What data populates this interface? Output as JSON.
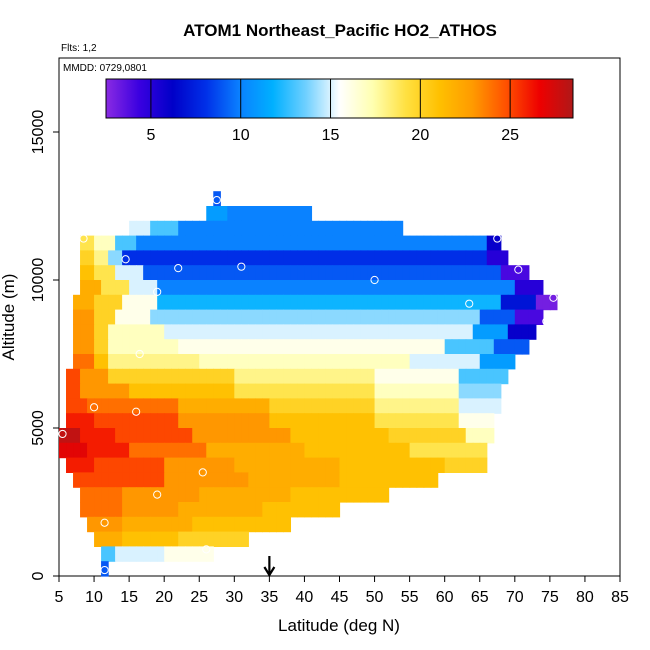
{
  "chart_data": {
    "type": "heatmap",
    "title": "ATOM1 Northeast_Pacific HO2_ATHOS",
    "subtitle_flights": "Flts: 1,2",
    "subtitle_dates": "MMDD: 0729,0801",
    "xlabel": "Latitude (deg N)",
    "ylabel": "Altitude (m)",
    "xlim": [
      5,
      85
    ],
    "ylim": [
      0,
      17500
    ],
    "xticks": [
      5,
      10,
      15,
      20,
      25,
      30,
      35,
      40,
      45,
      50,
      55,
      60,
      65,
      70,
      75,
      80,
      85
    ],
    "yticks": [
      0,
      5000,
      10000,
      15000
    ],
    "colorbar": {
      "range": [
        2.5,
        28.5
      ],
      "ticks": [
        5,
        10,
        15,
        20,
        25
      ],
      "colors": [
        "#8a2be2",
        "#3a00e0",
        "#0000c8",
        "#0030e8",
        "#0a80ff",
        "#00b0ff",
        "#70d0ff",
        "#ffffff",
        "#ffffb0",
        "#ffe040",
        "#ffc000",
        "#ff9a00",
        "#ff5000",
        "#ee0000",
        "#b01818"
      ]
    },
    "arrow_marker_lat": 35,
    "rows": [
      {
        "alt": [
          12500,
          13000
        ],
        "x1": 27,
        "x2": 28,
        "values": [
          [
            27,
            28,
            9
          ]
        ]
      },
      {
        "alt": [
          12000,
          12500
        ],
        "x1": 26,
        "x2": 41,
        "values": [
          [
            26,
            29,
            11
          ],
          [
            29,
            41,
            10
          ]
        ]
      },
      {
        "alt": [
          11500,
          12000
        ],
        "x1": 15,
        "x2": 54,
        "values": [
          [
            15,
            18,
            15
          ],
          [
            18,
            22,
            13
          ],
          [
            22,
            54,
            10
          ]
        ]
      },
      {
        "alt": [
          11000,
          11500
        ],
        "x1": 8,
        "x2": 68,
        "values": [
          [
            8,
            10,
            19
          ],
          [
            10,
            13,
            17
          ],
          [
            13,
            16,
            13
          ],
          [
            16,
            66,
            10
          ],
          [
            66,
            68,
            6
          ]
        ]
      },
      {
        "alt": [
          10500,
          11000
        ],
        "x1": 8,
        "x2": 69,
        "values": [
          [
            8,
            10,
            20
          ],
          [
            10,
            12,
            18
          ],
          [
            12,
            14,
            14
          ],
          [
            14,
            66,
            8
          ],
          [
            66,
            69,
            5
          ]
        ]
      },
      {
        "alt": [
          10000,
          10500
        ],
        "x1": 8,
        "x2": 72,
        "values": [
          [
            8,
            10,
            21
          ],
          [
            10,
            13,
            19
          ],
          [
            13,
            17,
            15
          ],
          [
            17,
            68,
            9
          ],
          [
            68,
            72,
            4
          ]
        ]
      },
      {
        "alt": [
          9500,
          10000
        ],
        "x1": 8,
        "x2": 74,
        "values": [
          [
            8,
            11,
            22
          ],
          [
            11,
            15,
            19
          ],
          [
            15,
            19,
            15
          ],
          [
            19,
            70,
            10
          ],
          [
            70,
            74,
            5
          ]
        ]
      },
      {
        "alt": [
          9000,
          9500
        ],
        "x1": 7,
        "x2": 76,
        "values": [
          [
            7,
            10,
            22
          ],
          [
            10,
            14,
            20
          ],
          [
            14,
            19,
            16
          ],
          [
            19,
            68,
            12
          ],
          [
            68,
            73,
            7
          ],
          [
            73,
            76,
            3
          ]
        ]
      },
      {
        "alt": [
          8500,
          9000
        ],
        "x1": 7,
        "x2": 74,
        "values": [
          [
            7,
            10,
            23
          ],
          [
            10,
            13,
            20
          ],
          [
            13,
            18,
            16
          ],
          [
            18,
            65,
            14
          ],
          [
            65,
            70,
            9
          ],
          [
            70,
            74,
            4
          ]
        ]
      },
      {
        "alt": [
          8000,
          8500
        ],
        "x1": 7,
        "x2": 73,
        "values": [
          [
            7,
            10,
            23
          ],
          [
            10,
            12,
            20
          ],
          [
            12,
            20,
            17
          ],
          [
            20,
            64,
            15
          ],
          [
            64,
            69,
            11
          ],
          [
            69,
            73,
            6
          ]
        ]
      },
      {
        "alt": [
          7500,
          8000
        ],
        "x1": 7,
        "x2": 72,
        "values": [
          [
            7,
            10,
            23
          ],
          [
            10,
            12,
            20
          ],
          [
            12,
            22,
            17
          ],
          [
            22,
            60,
            16
          ],
          [
            60,
            67,
            13
          ],
          [
            67,
            72,
            9
          ]
        ]
      },
      {
        "alt": [
          7000,
          7500
        ],
        "x1": 7,
        "x2": 70,
        "values": [
          [
            7,
            10,
            24
          ],
          [
            10,
            12,
            21
          ],
          [
            12,
            25,
            18
          ],
          [
            25,
            55,
            17
          ],
          [
            55,
            65,
            15
          ],
          [
            65,
            70,
            11
          ]
        ]
      },
      {
        "alt": [
          6500,
          7000
        ],
        "x1": 6,
        "x2": 69,
        "values": [
          [
            6,
            8,
            25
          ],
          [
            8,
            12,
            23
          ],
          [
            12,
            30,
            20
          ],
          [
            30,
            50,
            18
          ],
          [
            50,
            62,
            16
          ],
          [
            62,
            69,
            13
          ]
        ]
      },
      {
        "alt": [
          6000,
          6500
        ],
        "x1": 6,
        "x2": 68,
        "values": [
          [
            6,
            8,
            25
          ],
          [
            8,
            15,
            23
          ],
          [
            15,
            30,
            21
          ],
          [
            30,
            50,
            19
          ],
          [
            50,
            62,
            17
          ],
          [
            62,
            68,
            14
          ]
        ]
      },
      {
        "alt": [
          5500,
          6000
        ],
        "x1": 6,
        "x2": 68,
        "values": [
          [
            6,
            9,
            25
          ],
          [
            9,
            22,
            24
          ],
          [
            22,
            35,
            22
          ],
          [
            35,
            50,
            20
          ],
          [
            50,
            62,
            18
          ],
          [
            62,
            68,
            15
          ]
        ]
      },
      {
        "alt": [
          5000,
          5500
        ],
        "x1": 6,
        "x2": 67,
        "values": [
          [
            6,
            10,
            26
          ],
          [
            10,
            22,
            25
          ],
          [
            22,
            35,
            23
          ],
          [
            35,
            50,
            21
          ],
          [
            50,
            62,
            19
          ],
          [
            62,
            67,
            16
          ]
        ]
      },
      {
        "alt": [
          4500,
          5000
        ],
        "x1": 5,
        "x2": 67,
        "values": [
          [
            5,
            8,
            28
          ],
          [
            8,
            13,
            26
          ],
          [
            13,
            24,
            25
          ],
          [
            24,
            38,
            23
          ],
          [
            38,
            52,
            21
          ],
          [
            52,
            63,
            20
          ],
          [
            63,
            67,
            17
          ]
        ]
      },
      {
        "alt": [
          4000,
          4500
        ],
        "x1": 5,
        "x2": 66,
        "values": [
          [
            5,
            9,
            27
          ],
          [
            9,
            15,
            26
          ],
          [
            15,
            26,
            24
          ],
          [
            26,
            40,
            22
          ],
          [
            40,
            55,
            21
          ],
          [
            55,
            66,
            19
          ]
        ]
      },
      {
        "alt": [
          3500,
          4000
        ],
        "x1": 6,
        "x2": 66,
        "values": [
          [
            6,
            10,
            26
          ],
          [
            10,
            20,
            25
          ],
          [
            20,
            30,
            23
          ],
          [
            30,
            45,
            22
          ],
          [
            45,
            60,
            21
          ],
          [
            60,
            66,
            20
          ]
        ]
      },
      {
        "alt": [
          3000,
          3500
        ],
        "x1": 7,
        "x2": 59,
        "values": [
          [
            7,
            12,
            25
          ],
          [
            12,
            20,
            25
          ],
          [
            20,
            32,
            23
          ],
          [
            32,
            45,
            22
          ],
          [
            45,
            59,
            21
          ]
        ]
      },
      {
        "alt": [
          2500,
          3000
        ],
        "x1": 8,
        "x2": 52,
        "values": [
          [
            8,
            14,
            24
          ],
          [
            14,
            25,
            23
          ],
          [
            25,
            38,
            22
          ],
          [
            38,
            52,
            21
          ]
        ]
      },
      {
        "alt": [
          2000,
          2500
        ],
        "x1": 8,
        "x2": 45,
        "values": [
          [
            8,
            14,
            24
          ],
          [
            14,
            22,
            23
          ],
          [
            22,
            34,
            22
          ],
          [
            34,
            45,
            21
          ]
        ]
      },
      {
        "alt": [
          1500,
          2000
        ],
        "x1": 9,
        "x2": 38,
        "values": [
          [
            9,
            14,
            23
          ],
          [
            14,
            24,
            22
          ],
          [
            24,
            38,
            21
          ]
        ]
      },
      {
        "alt": [
          1000,
          1500
        ],
        "x1": 10,
        "x2": 32,
        "values": [
          [
            10,
            14,
            22
          ],
          [
            14,
            22,
            21
          ],
          [
            22,
            32,
            20
          ]
        ]
      },
      {
        "alt": [
          500,
          1000
        ],
        "x1": 11,
        "x2": 27,
        "values": [
          [
            11,
            13,
            13
          ],
          [
            13,
            20,
            15
          ],
          [
            20,
            27,
            16
          ]
        ]
      },
      {
        "alt": [
          0,
          500
        ],
        "x1": 11,
        "x2": 12,
        "values": [
          [
            11,
            12,
            9
          ]
        ]
      }
    ],
    "points": [
      [
        27.5,
        12700
      ],
      [
        67.5,
        11400
      ],
      [
        8.5,
        11400
      ],
      [
        14.5,
        10700
      ],
      [
        22,
        10400
      ],
      [
        31,
        10450
      ],
      [
        70.5,
        10350
      ],
      [
        50,
        10000
      ],
      [
        19,
        9600
      ],
      [
        63.5,
        9200
      ],
      [
        75.5,
        9400
      ],
      [
        74.5,
        8600
      ],
      [
        16.5,
        7500
      ],
      [
        10,
        5700
      ],
      [
        16,
        5550
      ],
      [
        5.5,
        4800
      ],
      [
        25.5,
        3500
      ],
      [
        19,
        2750
      ],
      [
        11.5,
        1800
      ],
      [
        26,
        900
      ],
      [
        11.5,
        200
      ]
    ]
  }
}
